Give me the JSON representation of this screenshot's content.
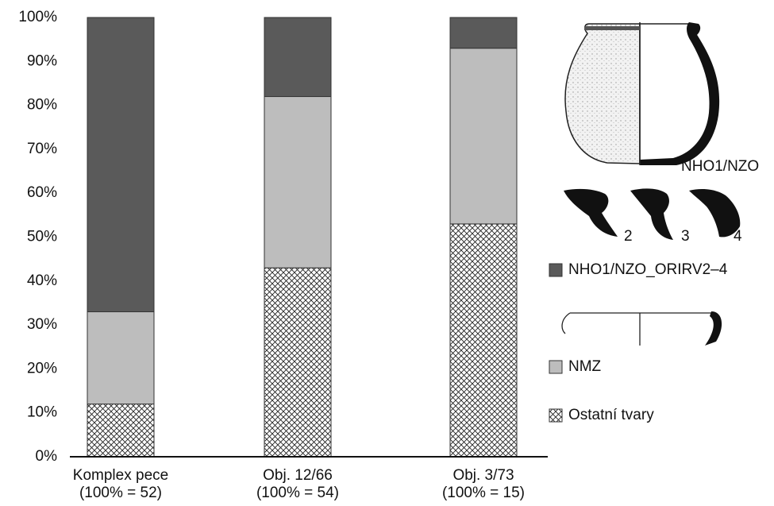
{
  "chart_data": {
    "type": "stacked-bar",
    "categories": [
      [
        "Komplex pece",
        "(100% = 52)"
      ],
      [
        "Obj. 12/66",
        "(100% = 54)"
      ],
      [
        "Obj. 3/73",
        "(100% = 15)"
      ]
    ],
    "series": [
      {
        "name": "Ostatní tvary",
        "color": "#ffffff",
        "pattern": "crosshatch",
        "values": [
          12,
          43,
          53
        ]
      },
      {
        "name": "NMZ",
        "color": "#bdbdbd",
        "values": [
          21,
          39,
          40
        ]
      },
      {
        "name": "NHO1/NZO_ORIRV2–4",
        "color": "#5a5a5a",
        "values": [
          67,
          18,
          7
        ]
      }
    ],
    "ylim": [
      0,
      100
    ],
    "yticks": [
      {
        "value": 0,
        "label": "0%"
      },
      {
        "value": 10,
        "label": "10%"
      },
      {
        "value": 20,
        "label": "20%"
      },
      {
        "value": 30,
        "label": "30%"
      },
      {
        "value": 40,
        "label": "40%"
      },
      {
        "value": 50,
        "label": "50%"
      },
      {
        "value": 60,
        "label": "60%"
      },
      {
        "value": 70,
        "label": "70%"
      },
      {
        "value": 80,
        "label": "80%"
      },
      {
        "value": 90,
        "label": "90%"
      },
      {
        "value": 100,
        "label": "100%"
      }
    ],
    "grid": false,
    "annotations": [
      "NHO1/NZO",
      "2",
      "3",
      "4"
    ]
  }
}
